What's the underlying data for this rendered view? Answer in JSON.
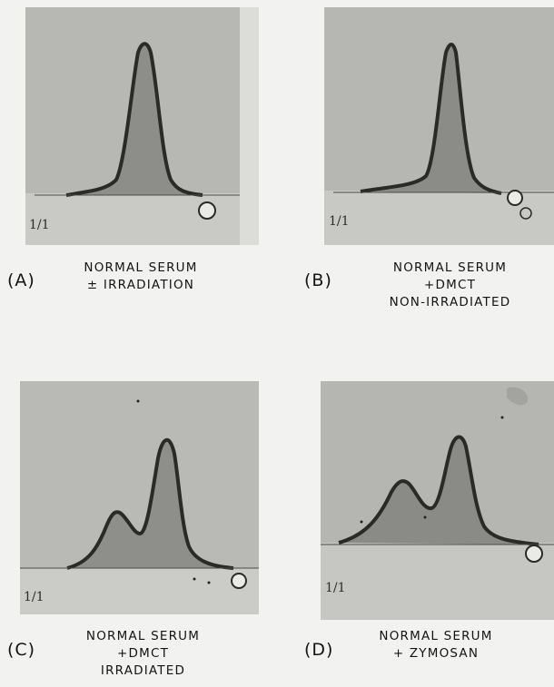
{
  "figure": {
    "panels": [
      {
        "tag": "(A)",
        "caption_lines": [
          "NORMAL SERUM",
          "± IRRADIATION"
        ],
        "slide_mark": "1/1",
        "peaks": 1
      },
      {
        "tag": "(B)",
        "caption_lines": [
          "NORMAL SERUM",
          "+DMCT",
          "NON-IRRADIATED"
        ],
        "slide_mark": "1/1",
        "peaks": 1
      },
      {
        "tag": "(C)",
        "caption_lines": [
          "NORMAL SERUM",
          "+DMCT",
          "IRRADIATED"
        ],
        "slide_mark": "1/1",
        "peaks": 2
      },
      {
        "tag": "(D)",
        "caption_lines": [
          "NORMAL SERUM",
          "+ ZYMOSAN"
        ],
        "slide_mark": "1/1",
        "peaks": 2
      }
    ]
  }
}
